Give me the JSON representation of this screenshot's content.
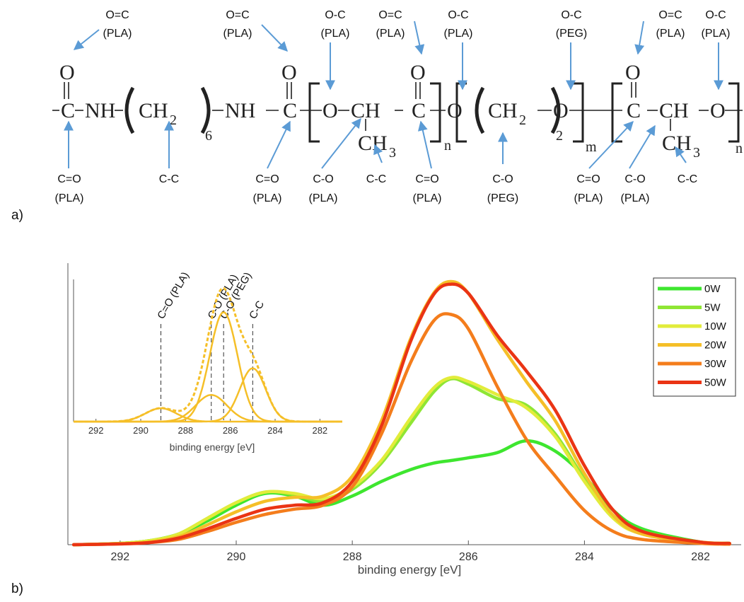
{
  "panel_labels": {
    "a": "a)",
    "b": "b)"
  },
  "structure": {
    "atoms": {
      "c1": "C",
      "o1": "O",
      "nh1": "NH",
      "ch2_1": "CH",
      "sub2_1": "2",
      "sub6": "6",
      "nh2": "NH",
      "c2": "C",
      "o2": "O",
      "o3": "O",
      "ch1": "CH",
      "c3": "C",
      "o4": "O",
      "ch3_1": "CH",
      "sub3_1": "3",
      "n1": "n",
      "o5": "O",
      "ch2_2": "CH",
      "sub2_2": "2",
      "sub2_3": "2",
      "o6": "O",
      "m": "m",
      "c4": "C",
      "o7": "O",
      "ch2": "CH",
      "o8": "O",
      "ch3_2": "CH",
      "sub3_2": "3",
      "n2": "n"
    },
    "top_annotations": [
      {
        "line1": "O=C",
        "line2": "(PLA)"
      },
      {
        "line1": "O=C",
        "line2": "(PLA)"
      },
      {
        "line1": "O-C",
        "line2": "(PLA)"
      },
      {
        "line1": "O=C",
        "line2": "(PLA)"
      },
      {
        "line1": "O-C",
        "line2": "(PLA)"
      },
      {
        "line1": "O-C",
        "line2": "(PEG)"
      },
      {
        "line1": "O=C",
        "line2": "(PLA)"
      },
      {
        "line1": "O-C",
        "line2": "(PLA)"
      }
    ],
    "bottom_annotations": [
      {
        "line1": "C=O",
        "line2": "(PLA)"
      },
      {
        "line1": "C-C",
        "line2": ""
      },
      {
        "line1": "C=O",
        "line2": "(PLA)"
      },
      {
        "line1": "C-O",
        "line2": "(PLA)"
      },
      {
        "line1": "C-C",
        "line2": ""
      },
      {
        "line1": "C=O",
        "line2": "(PLA)"
      },
      {
        "line1": "C-O",
        "line2": "(PEG)"
      },
      {
        "line1": "C=O",
        "line2": "(PLA)"
      },
      {
        "line1": "C-O",
        "line2": "(PLA)"
      },
      {
        "line1": "C-C",
        "line2": ""
      }
    ],
    "arrow_color": "#5b9bd5"
  },
  "chart_data": [
    {
      "type": "line",
      "role": "main",
      "xlabel": "binding energy [eV]",
      "ylabel": "",
      "xlim": [
        292.9,
        281.3
      ],
      "ylim": [
        0,
        1.0
      ],
      "x_reversed": true,
      "xticks": [
        292,
        290,
        288,
        286,
        284,
        282
      ],
      "tick_labels": [
        "292",
        "290",
        "288",
        "286",
        "284",
        "282"
      ],
      "legend_placement": "top-right",
      "x": [
        292.8,
        292.0,
        291.5,
        291.0,
        290.5,
        290.0,
        289.5,
        289.0,
        288.5,
        288.0,
        287.5,
        287.0,
        286.6,
        286.3,
        286.0,
        285.5,
        285.0,
        284.5,
        284.0,
        283.5,
        283.0,
        282.0,
        281.5
      ],
      "series": [
        {
          "name": "0W",
          "color": "#3ee62f",
          "values": [
            0,
            0.005,
            0.015,
            0.04,
            0.09,
            0.15,
            0.195,
            0.185,
            0.15,
            0.185,
            0.24,
            0.285,
            0.31,
            0.32,
            0.33,
            0.35,
            0.395,
            0.355,
            0.26,
            0.13,
            0.06,
            0.01,
            0.005
          ]
        },
        {
          "name": "5W",
          "color": "#8fe634",
          "values": [
            0,
            0.005,
            0.015,
            0.04,
            0.1,
            0.16,
            0.2,
            0.19,
            0.165,
            0.21,
            0.31,
            0.46,
            0.58,
            0.63,
            0.61,
            0.555,
            0.53,
            0.42,
            0.25,
            0.11,
            0.05,
            0.01,
            0.005
          ]
        },
        {
          "name": "10W",
          "color": "#e2ec3a",
          "values": [
            0,
            0.005,
            0.015,
            0.04,
            0.1,
            0.16,
            0.2,
            0.195,
            0.175,
            0.22,
            0.32,
            0.48,
            0.595,
            0.635,
            0.62,
            0.57,
            0.52,
            0.41,
            0.24,
            0.1,
            0.04,
            0.01,
            0.005
          ]
        },
        {
          "name": "20W",
          "color": "#f5bf28",
          "values": [
            0,
            0.004,
            0.01,
            0.03,
            0.075,
            0.125,
            0.165,
            0.18,
            0.185,
            0.26,
            0.47,
            0.78,
            0.955,
            1.0,
            0.955,
            0.78,
            0.62,
            0.47,
            0.27,
            0.11,
            0.04,
            0.01,
            0.005
          ]
        },
        {
          "name": "30W",
          "color": "#f47d1c",
          "values": [
            0,
            0.003,
            0.008,
            0.02,
            0.05,
            0.085,
            0.115,
            0.135,
            0.15,
            0.22,
            0.42,
            0.69,
            0.85,
            0.875,
            0.82,
            0.6,
            0.4,
            0.26,
            0.13,
            0.05,
            0.02,
            0.005,
            0.002
          ]
        },
        {
          "name": "50W",
          "color": "#ea3414",
          "values": [
            0,
            0.003,
            0.008,
            0.025,
            0.06,
            0.1,
            0.135,
            0.15,
            0.16,
            0.24,
            0.45,
            0.77,
            0.95,
            0.99,
            0.955,
            0.795,
            0.66,
            0.51,
            0.3,
            0.13,
            0.05,
            0.01,
            0.005
          ]
        }
      ]
    },
    {
      "type": "line",
      "role": "inset",
      "xlabel": "binding energy [eV]",
      "xlim": [
        293.0,
        281.0
      ],
      "ylim": [
        0,
        1.05
      ],
      "x_reversed": true,
      "xticks": [
        292,
        290,
        288,
        286,
        284,
        282
      ],
      "tick_labels": [
        "292",
        "290",
        "288",
        "286",
        "284",
        "282"
      ],
      "color": "#f5bf28",
      "components": [
        {
          "center": 289.1,
          "height": 0.1,
          "sigma": 0.7
        },
        {
          "center": 286.85,
          "height": 0.2,
          "sigma": 0.7
        },
        {
          "center": 286.3,
          "height": 0.82,
          "sigma": 0.62
        },
        {
          "center": 285.0,
          "height": 0.4,
          "sigma": 0.58
        }
      ],
      "peak_labels": [
        {
          "text": "C=O (PLA)",
          "x": 289.1
        },
        {
          "text": "C-O (PLA)",
          "x": 286.85
        },
        {
          "text": "C-O (PEG)",
          "x": 286.3
        },
        {
          "text": "C-C",
          "x": 285.0
        }
      ]
    }
  ]
}
